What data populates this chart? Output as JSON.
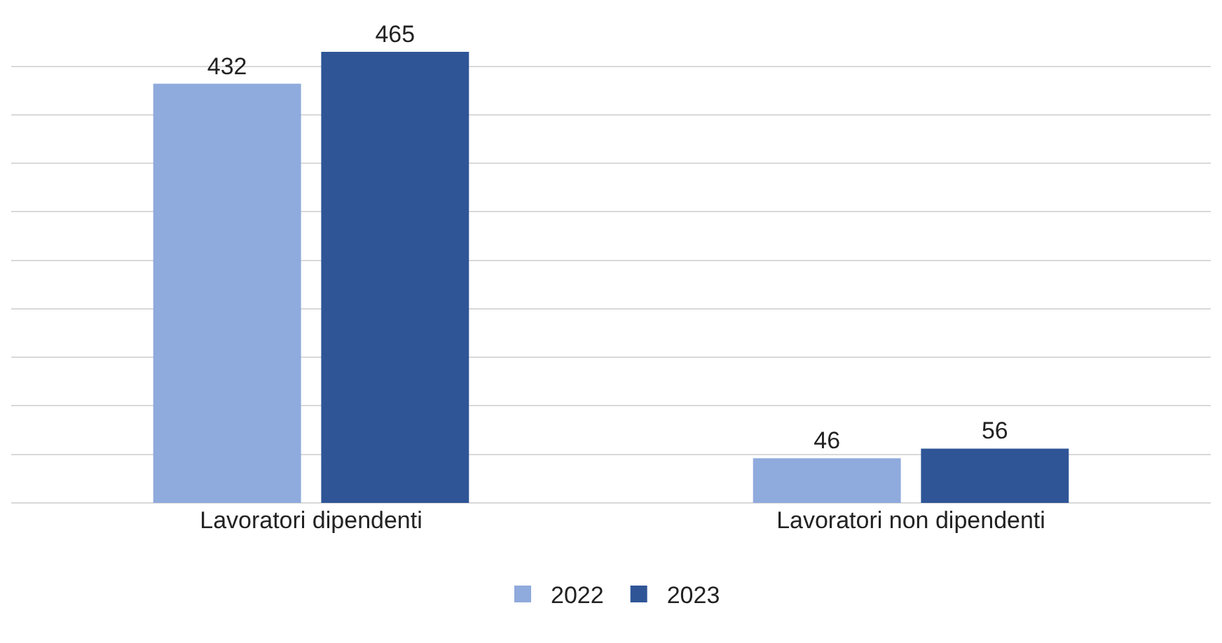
{
  "chart_data": {
    "type": "bar",
    "categories": [
      "Lavoratori dipendenti",
      "Lavoratori non dipendenti"
    ],
    "series": [
      {
        "name": "2022",
        "color": "#8faadc",
        "values": [
          432,
          46
        ]
      },
      {
        "name": "2023",
        "color": "#2f5597",
        "values": [
          465,
          56
        ]
      }
    ],
    "yticks": [
      {
        "value": 50,
        "label": null
      },
      {
        "value": 100,
        "label": null
      },
      {
        "value": 150,
        "label": null
      },
      {
        "value": 200,
        "label": null
      },
      {
        "value": 250,
        "label": null
      },
      {
        "value": 300,
        "label": null
      },
      {
        "value": 350,
        "label": null
      },
      {
        "value": 400,
        "label": null
      },
      {
        "value": 450,
        "label": null
      }
    ],
    "grid": "y",
    "legend": "bottom",
    "data_labels": true,
    "tick_labels": "x"
  }
}
